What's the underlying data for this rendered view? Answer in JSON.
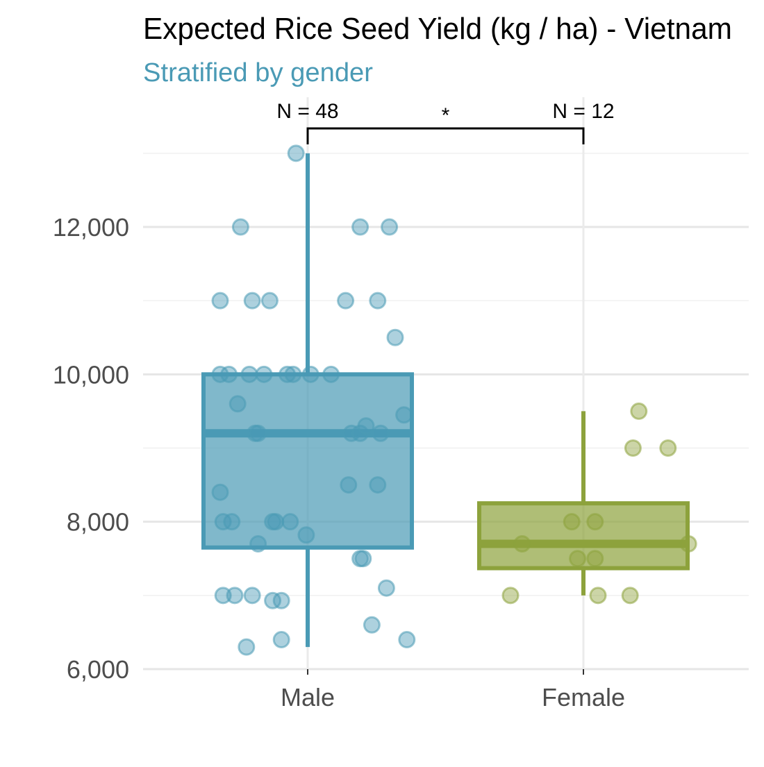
{
  "chart_data": {
    "type": "box",
    "title": "Expected Rice Seed Yield (kg / ha) - Vietnam",
    "subtitle": "Stratified by gender",
    "xlabel": "",
    "ylabel": "",
    "categories": [
      "Male",
      "Female"
    ],
    "ylim": [
      6000,
      13000
    ],
    "y_ticks": [
      6000,
      8000,
      10000,
      12000
    ],
    "y_tick_labels": [
      "6,000",
      "8,000",
      "10,000",
      "12,000"
    ],
    "grid": true,
    "legend": "none",
    "significance": {
      "label": "*",
      "between": [
        "Male",
        "Female"
      ]
    },
    "series": [
      {
        "category": "Male",
        "count_label": "N = 48",
        "color": "#4a9ab5",
        "box": {
          "whisker_low": 6300,
          "q1": 7650,
          "median": 9200,
          "q3": 10000,
          "whisker_high": 13000
        },
        "points": [
          {
            "x": -0.3,
            "y": 8400
          },
          {
            "x": -0.29,
            "y": 8000
          },
          {
            "x": -0.29,
            "y": 7000
          },
          {
            "x": -0.25,
            "y": 7000
          },
          {
            "x": -0.27,
            "y": 10000
          },
          {
            "x": -0.3,
            "y": 10000
          },
          {
            "x": -0.3,
            "y": 11000
          },
          {
            "x": -0.23,
            "y": 12000
          },
          {
            "x": -0.24,
            "y": 9600
          },
          {
            "x": -0.26,
            "y": 8000
          },
          {
            "x": -0.21,
            "y": 6300
          },
          {
            "x": -0.19,
            "y": 11000
          },
          {
            "x": -0.19,
            "y": 7000
          },
          {
            "x": -0.17,
            "y": 7700
          },
          {
            "x": -0.2,
            "y": 10000
          },
          {
            "x": -0.15,
            "y": 10000
          },
          {
            "x": -0.18,
            "y": 9200
          },
          {
            "x": -0.17,
            "y": 9200
          },
          {
            "x": -0.13,
            "y": 11000
          },
          {
            "x": -0.12,
            "y": 8000
          },
          {
            "x": -0.12,
            "y": 6930
          },
          {
            "x": -0.11,
            "y": 8000
          },
          {
            "x": -0.09,
            "y": 6400
          },
          {
            "x": -0.09,
            "y": 6930
          },
          {
            "x": -0.07,
            "y": 10000
          },
          {
            "x": -0.06,
            "y": 8000
          },
          {
            "x": -0.05,
            "y": 10000
          },
          {
            "x": -0.04,
            "y": 13000
          },
          {
            "x": -0.005,
            "y": 7820
          },
          {
            "x": 0.01,
            "y": 10000
          },
          {
            "x": 0.08,
            "y": 10000
          },
          {
            "x": 0.13,
            "y": 11000
          },
          {
            "x": 0.14,
            "y": 8500
          },
          {
            "x": 0.15,
            "y": 9200
          },
          {
            "x": 0.18,
            "y": 9200
          },
          {
            "x": 0.18,
            "y": 12000
          },
          {
            "x": 0.18,
            "y": 7500
          },
          {
            "x": 0.19,
            "y": 7500
          },
          {
            "x": 0.2,
            "y": 9300
          },
          {
            "x": 0.22,
            "y": 6600
          },
          {
            "x": 0.24,
            "y": 8500
          },
          {
            "x": 0.24,
            "y": 11000
          },
          {
            "x": 0.25,
            "y": 9200
          },
          {
            "x": 0.27,
            "y": 7100
          },
          {
            "x": 0.28,
            "y": 12000
          },
          {
            "x": 0.3,
            "y": 10500
          },
          {
            "x": 0.33,
            "y": 9450
          },
          {
            "x": 0.34,
            "y": 6400
          }
        ]
      },
      {
        "category": "Female",
        "count_label": "N = 12",
        "color": "#8da23c",
        "box": {
          "whisker_low": 7000,
          "q1": 7370,
          "median": 7700,
          "q3": 8250,
          "whisker_high": 9500
        },
        "points": [
          {
            "x": -0.25,
            "y": 7000
          },
          {
            "x": -0.21,
            "y": 7700
          },
          {
            "x": -0.04,
            "y": 8000
          },
          {
            "x": -0.02,
            "y": 7500
          },
          {
            "x": 0.04,
            "y": 8000
          },
          {
            "x": 0.04,
            "y": 7500
          },
          {
            "x": 0.05,
            "y": 7000
          },
          {
            "x": 0.16,
            "y": 7000
          },
          {
            "x": 0.17,
            "y": 9000
          },
          {
            "x": 0.19,
            "y": 9500
          },
          {
            "x": 0.29,
            "y": 9000
          },
          {
            "x": 0.36,
            "y": 7700
          }
        ]
      }
    ]
  }
}
